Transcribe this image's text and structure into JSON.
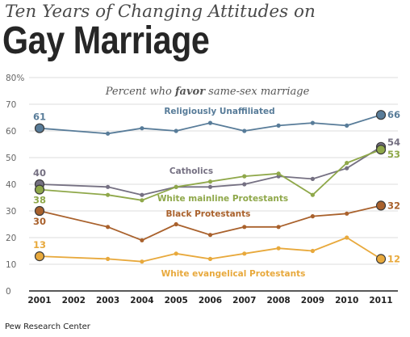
{
  "header": {
    "pretitle": "Ten Years of Changing Attitudes on",
    "title": "Gay Marriage"
  },
  "source": "Pew Research Center",
  "chart_data": {
    "type": "line",
    "subtitle_prefix": "Percent who ",
    "subtitle_emphasis": "favor",
    "subtitle_suffix": " same-sex marriage",
    "x": [
      2001,
      2002,
      2003,
      2004,
      2005,
      2006,
      2007,
      2008,
      2009,
      2010,
      2011
    ],
    "x_tick_labels": [
      "2001",
      "2002",
      "2003",
      "2004",
      "2005",
      "2006",
      "2007",
      "2008",
      "2009",
      "2010",
      "2011"
    ],
    "ylim": [
      0,
      80
    ],
    "y_ticks": [
      0,
      10,
      20,
      30,
      40,
      50,
      60,
      70,
      80
    ],
    "y_tick_labels": [
      "0",
      "10",
      "20",
      "30",
      "40",
      "50",
      "60",
      "70",
      "80%"
    ],
    "grid": true,
    "series": [
      {
        "name": "Religiously Unaffiliated",
        "color": "#587c99",
        "x": [
          2001,
          2003,
          2004,
          2005,
          2006,
          2007,
          2008,
          2009,
          2010,
          2011
        ],
        "values": [
          61,
          59,
          61,
          60,
          63,
          60,
          62,
          63,
          62,
          66
        ],
        "start_label": "61",
        "end_label": "66"
      },
      {
        "name": "Catholics",
        "color": "#757082",
        "x": [
          2001,
          2003,
          2004,
          2005,
          2006,
          2007,
          2008,
          2009,
          2010,
          2011
        ],
        "values": [
          40,
          39,
          36,
          39,
          39,
          40,
          43,
          42,
          46,
          54
        ],
        "start_label": "40",
        "end_label": "54"
      },
      {
        "name": "White mainline Protestants",
        "color": "#8fa84a",
        "x": [
          2001,
          2003,
          2004,
          2005,
          2006,
          2007,
          2008,
          2009,
          2010,
          2011
        ],
        "values": [
          38,
          36,
          34,
          39,
          41,
          43,
          44,
          36,
          48,
          53
        ],
        "start_label": "38",
        "end_label": "53"
      },
      {
        "name": "Black Protestants",
        "color": "#a9612c",
        "x": [
          2001,
          2003,
          2004,
          2005,
          2006,
          2007,
          2008,
          2009,
          2010,
          2011
        ],
        "values": [
          30,
          24,
          19,
          25,
          21,
          24,
          24,
          28,
          29,
          32
        ],
        "start_label": "30",
        "end_label": "32"
      },
      {
        "name": "White evangelical Protestants",
        "color": "#e8a93c",
        "x": [
          2001,
          2003,
          2004,
          2005,
          2006,
          2007,
          2008,
          2009,
          2010,
          2011
        ],
        "values": [
          13,
          12,
          11,
          14,
          12,
          14,
          16,
          15,
          20,
          12
        ],
        "start_label": "13",
        "end_label": "12"
      }
    ]
  }
}
